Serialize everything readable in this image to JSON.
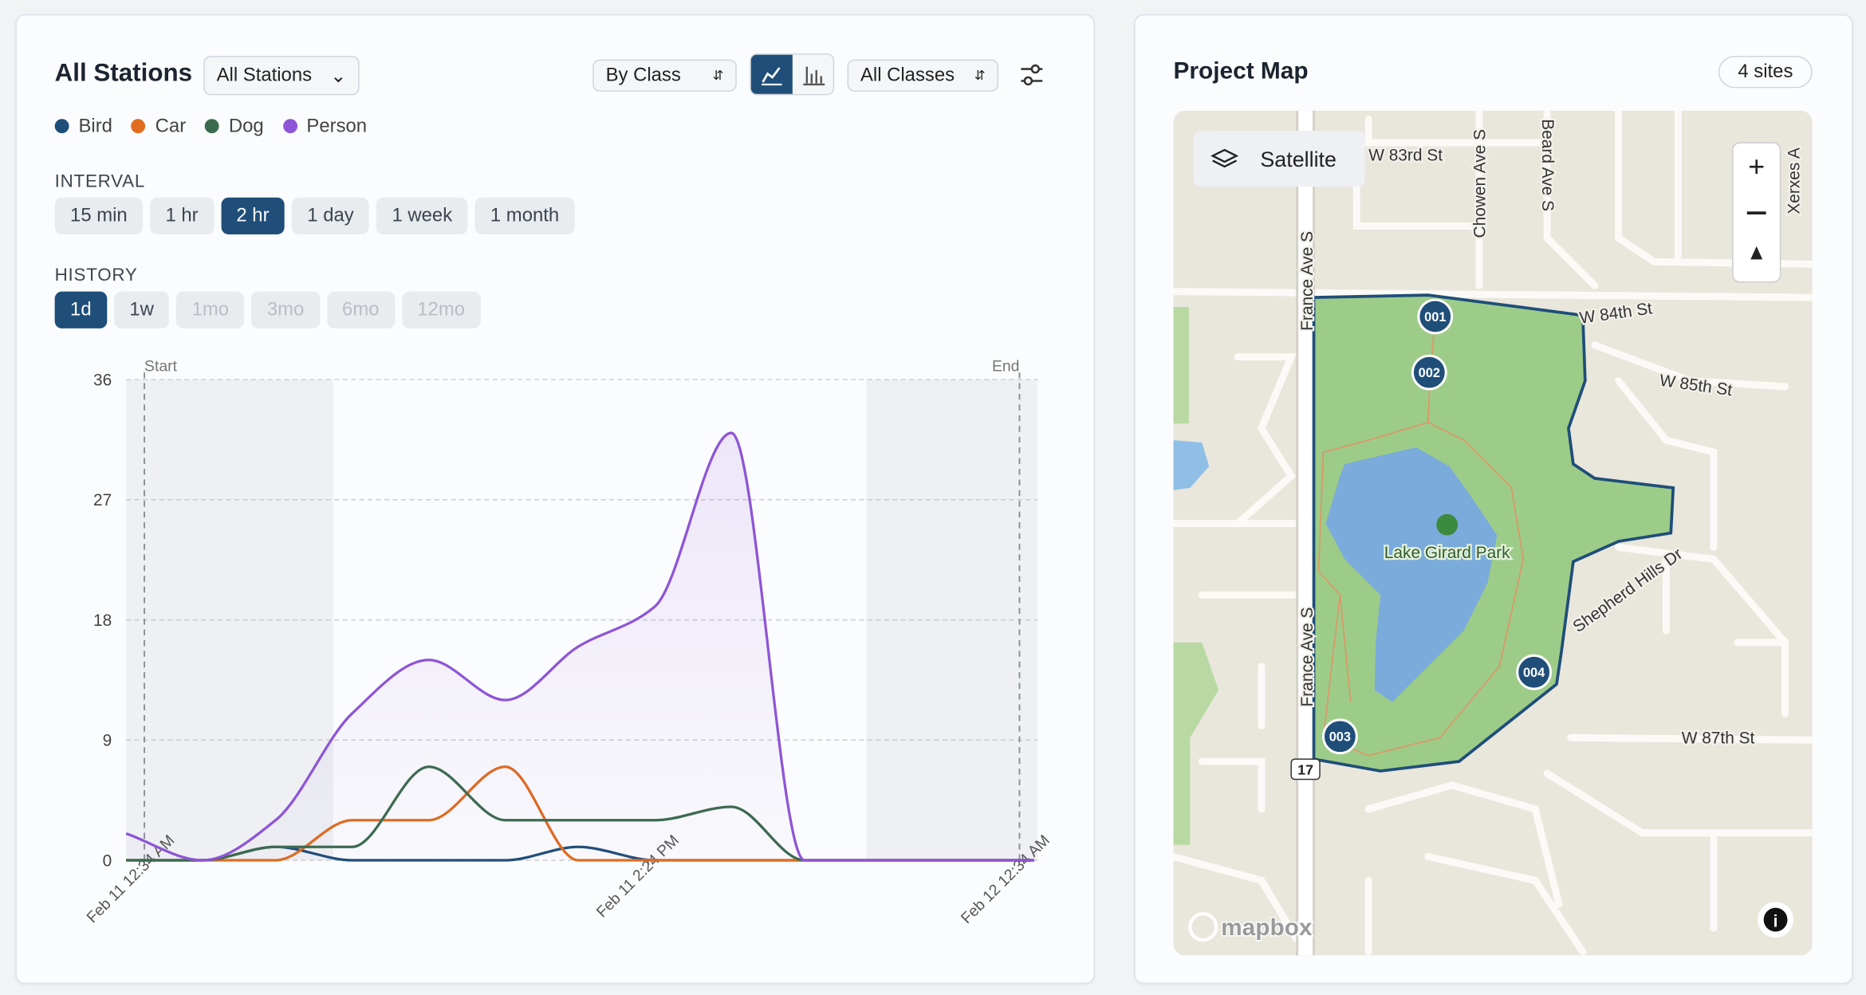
{
  "header": {
    "title": "All Stations",
    "station_select": "All Stations",
    "group_select": "By Class",
    "class_select": "All Classes"
  },
  "interval": {
    "label": "INTERVAL",
    "options": [
      "15 min",
      "1 hr",
      "2 hr",
      "1 day",
      "1 week",
      "1 month"
    ],
    "selected": 2
  },
  "history": {
    "label": "HISTORY",
    "options": [
      "1d",
      "1w",
      "1mo",
      "3mo",
      "6mo",
      "12mo"
    ],
    "selected": 0,
    "disabled_from": 2
  },
  "chart_data": {
    "type": "line",
    "x": [
      -0.5,
      1.6,
      3.6,
      5.7,
      7.8,
      9.9,
      11.9,
      14.0,
      16.1,
      18.1,
      20.2,
      22.3,
      24.4
    ],
    "series": [
      {
        "name": "Bird",
        "color": "#1f4e79",
        "values": [
          0,
          0,
          1,
          0,
          0,
          0,
          1,
          0,
          0,
          0,
          0,
          0,
          0
        ]
      },
      {
        "name": "Car",
        "color": "#e06c1f",
        "values": [
          0,
          0,
          0,
          3,
          3,
          7,
          0,
          0,
          0,
          0,
          0,
          0,
          0
        ]
      },
      {
        "name": "Dog",
        "color": "#3a6b4d",
        "values": [
          0,
          0,
          1,
          1,
          7,
          3,
          3,
          3,
          4,
          0,
          0,
          0,
          0
        ]
      },
      {
        "name": "Person",
        "color": "#8e55d6",
        "values": [
          2,
          0,
          3,
          11,
          15,
          12,
          16,
          19,
          32,
          0,
          0,
          0,
          0
        ]
      }
    ],
    "xlim": [
      -0.5,
      24.5
    ],
    "xticks": [
      {
        "value": 0,
        "label": "Feb 11 12:34 AM"
      },
      {
        "value": 13.83,
        "label": "Feb 11 2:24 PM"
      },
      {
        "value": 24,
        "label": "Feb 12 12:34 AM"
      }
    ],
    "markers": [
      {
        "value": 0,
        "label": "Start"
      },
      {
        "value": 24,
        "label": "End"
      }
    ],
    "ylim": [
      0,
      36
    ],
    "yticks": [
      0,
      9,
      18,
      27,
      36
    ],
    "grid": true,
    "legend": "top-left"
  },
  "map": {
    "title": "Project Map",
    "badge": "4 sites",
    "layer_button": "Satellite",
    "park": "Lake Girard Park",
    "route": "17",
    "attribution": "mapbox",
    "streets": [
      "W 83rd St",
      "Chowen Ave S",
      "Beard Ave S",
      "Xerxes A",
      "France Ave S",
      "W 84th St",
      "W 85th St",
      "France Ave S",
      "Shepherd Hills Dr",
      "W 87th St"
    ],
    "sites": [
      "001",
      "002",
      "003",
      "004"
    ]
  }
}
